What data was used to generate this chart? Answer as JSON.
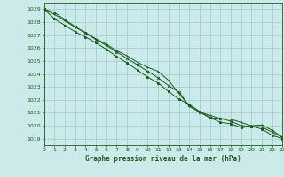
{
  "title": "Graphe pression niveau de la mer (hPa)",
  "background_color": "#cceaea",
  "grid_color": "#99cccc",
  "line_color": "#1a5c1a",
  "xlim": [
    0,
    23
  ],
  "ylim": [
    1018.5,
    1029.5
  ],
  "xticks": [
    0,
    1,
    2,
    3,
    4,
    5,
    6,
    7,
    8,
    9,
    10,
    11,
    12,
    13,
    14,
    15,
    16,
    17,
    18,
    19,
    20,
    21,
    22,
    23
  ],
  "yticks": [
    1019,
    1020,
    1021,
    1022,
    1023,
    1024,
    1025,
    1026,
    1027,
    1028,
    1029
  ],
  "series1_x": [
    0,
    1,
    2,
    3,
    4,
    5,
    6,
    7,
    8,
    9,
    10,
    11,
    12,
    13,
    14,
    15,
    16,
    17,
    18,
    19,
    20,
    21,
    22,
    23
  ],
  "series1_y": [
    1029.0,
    1028.6,
    1028.1,
    1027.6,
    1027.2,
    1026.7,
    1026.3,
    1025.8,
    1025.4,
    1024.9,
    1024.5,
    1024.2,
    1023.5,
    1022.5,
    1021.5,
    1021.05,
    1020.8,
    1020.55,
    1020.5,
    1020.25,
    1020.0,
    1020.05,
    1019.65,
    1019.1
  ],
  "series2_x": [
    0,
    1,
    2,
    3,
    4,
    5,
    6,
    7,
    8,
    9,
    10,
    11,
    12,
    13,
    14,
    15,
    16,
    17,
    18,
    19,
    20,
    21,
    22,
    23
  ],
  "series2_y": [
    1029.0,
    1028.75,
    1028.2,
    1027.65,
    1027.15,
    1026.65,
    1026.2,
    1025.7,
    1025.2,
    1024.7,
    1024.2,
    1023.7,
    1023.1,
    1022.6,
    1021.55,
    1021.05,
    1020.6,
    1020.55,
    1020.35,
    1020.0,
    1019.95,
    1019.9,
    1019.5,
    1019.1
  ],
  "series3_x": [
    0,
    1,
    2,
    3,
    4,
    5,
    6,
    7,
    8,
    9,
    10,
    11,
    12,
    13,
    14,
    15,
    16,
    17,
    18,
    19,
    20,
    21,
    22,
    23
  ],
  "series3_y": [
    1029.0,
    1028.25,
    1027.75,
    1027.25,
    1026.85,
    1026.4,
    1025.9,
    1025.35,
    1024.85,
    1024.3,
    1023.75,
    1023.3,
    1022.65,
    1022.05,
    1021.65,
    1021.1,
    1020.65,
    1020.25,
    1020.15,
    1019.85,
    1019.95,
    1019.75,
    1019.25,
    1019.0
  ]
}
